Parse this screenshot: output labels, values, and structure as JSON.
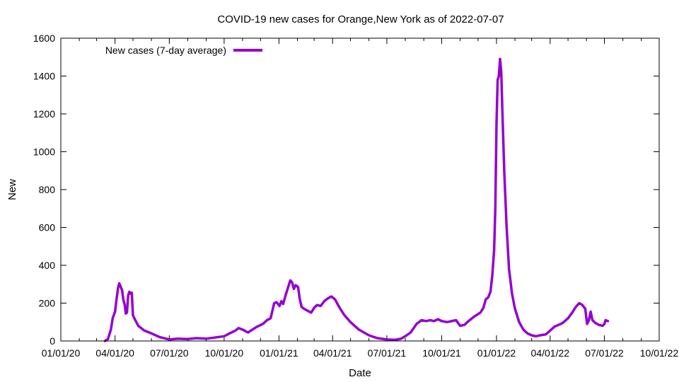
{
  "chart_data": {
    "type": "line",
    "title": "COVID-19 new cases for Orange,New York as of 2022-07-07",
    "xlabel": "Date",
    "ylabel": "New",
    "ylim": [
      0,
      1600
    ],
    "yticks": [
      0,
      200,
      400,
      600,
      800,
      1000,
      1200,
      1400,
      1600
    ],
    "xlim": [
      "2020-01-01",
      "2022-10-01"
    ],
    "xticks": [
      "01/01/20",
      "04/01/20",
      "07/01/20",
      "10/01/20",
      "01/01/21",
      "04/01/21",
      "07/01/21",
      "10/01/21",
      "01/01/22",
      "04/01/22",
      "07/01/22",
      "10/01/22"
    ],
    "xtick_dates": [
      "2020-01-01",
      "2020-04-01",
      "2020-07-01",
      "2020-10-01",
      "2021-01-01",
      "2021-04-01",
      "2021-07-01",
      "2021-10-01",
      "2022-01-01",
      "2022-04-01",
      "2022-07-01",
      "2022-10-01"
    ],
    "grid": false,
    "legend_position": "top-left",
    "series": [
      {
        "name": "New cases (7-day average)",
        "color": "#9400D3",
        "points": [
          [
            "2020-03-15",
            0
          ],
          [
            "2020-03-20",
            10
          ],
          [
            "2020-03-25",
            60
          ],
          [
            "2020-03-28",
            120
          ],
          [
            "2020-04-01",
            155
          ],
          [
            "2020-04-03",
            210
          ],
          [
            "2020-04-06",
            280
          ],
          [
            "2020-04-08",
            305
          ],
          [
            "2020-04-10",
            290
          ],
          [
            "2020-04-13",
            265
          ],
          [
            "2020-04-15",
            215
          ],
          [
            "2020-04-17",
            195
          ],
          [
            "2020-04-19",
            145
          ],
          [
            "2020-04-21",
            150
          ],
          [
            "2020-04-23",
            240
          ],
          [
            "2020-04-25",
            260
          ],
          [
            "2020-04-27",
            250
          ],
          [
            "2020-04-29",
            255
          ],
          [
            "2020-05-01",
            135
          ],
          [
            "2020-05-05",
            110
          ],
          [
            "2020-05-10",
            80
          ],
          [
            "2020-05-20",
            55
          ],
          [
            "2020-06-01",
            40
          ],
          [
            "2020-06-15",
            20
          ],
          [
            "2020-07-01",
            8
          ],
          [
            "2020-07-15",
            12
          ],
          [
            "2020-08-01",
            10
          ],
          [
            "2020-08-15",
            15
          ],
          [
            "2020-09-01",
            12
          ],
          [
            "2020-09-15",
            18
          ],
          [
            "2020-10-01",
            25
          ],
          [
            "2020-10-10",
            40
          ],
          [
            "2020-10-20",
            55
          ],
          [
            "2020-10-25",
            68
          ],
          [
            "2020-11-01",
            60
          ],
          [
            "2020-11-10",
            45
          ],
          [
            "2020-11-15",
            55
          ],
          [
            "2020-11-25",
            75
          ],
          [
            "2020-12-05",
            90
          ],
          [
            "2020-12-12",
            110
          ],
          [
            "2020-12-18",
            120
          ],
          [
            "2020-12-24",
            200
          ],
          [
            "2020-12-28",
            205
          ],
          [
            "2021-01-02",
            185
          ],
          [
            "2021-01-05",
            210
          ],
          [
            "2021-01-08",
            195
          ],
          [
            "2021-01-12",
            240
          ],
          [
            "2021-01-16",
            280
          ],
          [
            "2021-01-20",
            320
          ],
          [
            "2021-01-23",
            310
          ],
          [
            "2021-01-26",
            275
          ],
          [
            "2021-01-29",
            295
          ],
          [
            "2021-02-02",
            285
          ],
          [
            "2021-02-05",
            220
          ],
          [
            "2021-02-08",
            180
          ],
          [
            "2021-02-12",
            170
          ],
          [
            "2021-02-18",
            160
          ],
          [
            "2021-02-24",
            150
          ],
          [
            "2021-03-01",
            175
          ],
          [
            "2021-03-06",
            190
          ],
          [
            "2021-03-12",
            185
          ],
          [
            "2021-03-18",
            210
          ],
          [
            "2021-03-24",
            225
          ],
          [
            "2021-03-30",
            235
          ],
          [
            "2021-04-05",
            220
          ],
          [
            "2021-04-12",
            180
          ],
          [
            "2021-04-20",
            140
          ],
          [
            "2021-05-01",
            100
          ],
          [
            "2021-05-15",
            60
          ],
          [
            "2021-06-01",
            30
          ],
          [
            "2021-06-15",
            15
          ],
          [
            "2021-07-01",
            8
          ],
          [
            "2021-07-15",
            6
          ],
          [
            "2021-07-25",
            12
          ],
          [
            "2021-08-01",
            25
          ],
          [
            "2021-08-10",
            45
          ],
          [
            "2021-08-20",
            90
          ],
          [
            "2021-08-28",
            110
          ],
          [
            "2021-09-05",
            105
          ],
          [
            "2021-09-12",
            110
          ],
          [
            "2021-09-18",
            105
          ],
          [
            "2021-09-25",
            115
          ],
          [
            "2021-10-01",
            105
          ],
          [
            "2021-10-10",
            100
          ],
          [
            "2021-10-18",
            105
          ],
          [
            "2021-10-25",
            110
          ],
          [
            "2021-11-01",
            80
          ],
          [
            "2021-11-08",
            85
          ],
          [
            "2021-11-15",
            105
          ],
          [
            "2021-11-25",
            130
          ],
          [
            "2021-12-05",
            150
          ],
          [
            "2021-12-10",
            175
          ],
          [
            "2021-12-14",
            220
          ],
          [
            "2021-12-18",
            230
          ],
          [
            "2021-12-22",
            260
          ],
          [
            "2021-12-25",
            350
          ],
          [
            "2021-12-28",
            480
          ],
          [
            "2021-12-30",
            700
          ],
          [
            "2022-01-01",
            1150
          ],
          [
            "2022-01-03",
            1380
          ],
          [
            "2022-01-05",
            1400
          ],
          [
            "2022-01-07",
            1490
          ],
          [
            "2022-01-09",
            1420
          ],
          [
            "2022-01-11",
            1200
          ],
          [
            "2022-01-14",
            900
          ],
          [
            "2022-01-18",
            600
          ],
          [
            "2022-01-22",
            380
          ],
          [
            "2022-01-27",
            250
          ],
          [
            "2022-02-01",
            170
          ],
          [
            "2022-02-08",
            100
          ],
          [
            "2022-02-15",
            60
          ],
          [
            "2022-02-22",
            40
          ],
          [
            "2022-03-01",
            30
          ],
          [
            "2022-03-08",
            25
          ],
          [
            "2022-03-15",
            30
          ],
          [
            "2022-03-25",
            35
          ],
          [
            "2022-04-01",
            55
          ],
          [
            "2022-04-08",
            75
          ],
          [
            "2022-04-15",
            85
          ],
          [
            "2022-04-22",
            95
          ],
          [
            "2022-05-01",
            120
          ],
          [
            "2022-05-08",
            150
          ],
          [
            "2022-05-14",
            180
          ],
          [
            "2022-05-20",
            200
          ],
          [
            "2022-05-25",
            190
          ],
          [
            "2022-05-30",
            170
          ],
          [
            "2022-06-02",
            90
          ],
          [
            "2022-06-05",
            110
          ],
          [
            "2022-06-08",
            155
          ],
          [
            "2022-06-11",
            110
          ],
          [
            "2022-06-16",
            95
          ],
          [
            "2022-06-22",
            85
          ],
          [
            "2022-06-28",
            80
          ],
          [
            "2022-07-01",
            90
          ],
          [
            "2022-07-03",
            110
          ],
          [
            "2022-07-07",
            105
          ]
        ]
      }
    ]
  }
}
